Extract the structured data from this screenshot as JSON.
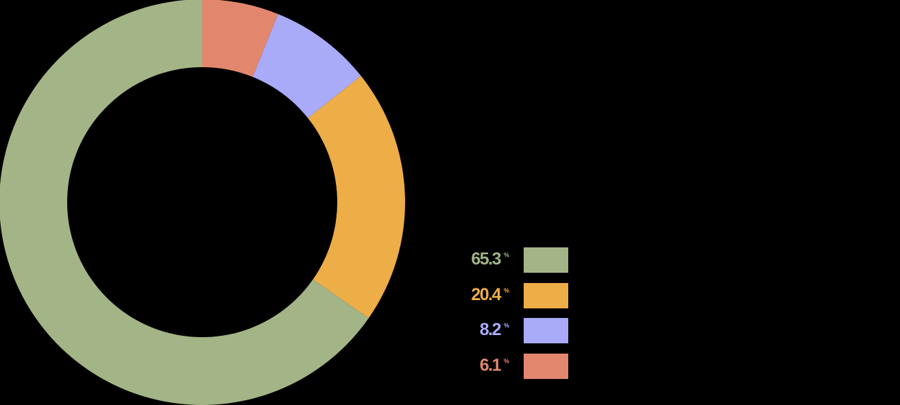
{
  "chart_data": {
    "type": "pie",
    "variant": "donut",
    "unit": "%",
    "slices": [
      {
        "value": 65.3,
        "label": "65.3",
        "color": "#a3b486"
      },
      {
        "value": 20.4,
        "label": "20.4",
        "color": "#edad47"
      },
      {
        "value": 8.2,
        "label": "8.2",
        "color": "#a9abf8"
      },
      {
        "value": 6.1,
        "label": "6.1",
        "color": "#e2876e"
      }
    ],
    "drawing_order": [
      3,
      2,
      1,
      0
    ],
    "start_angle": "12 o'clock",
    "direction": "clockwise",
    "legend_position": "bottom-right",
    "background": "#000000"
  }
}
